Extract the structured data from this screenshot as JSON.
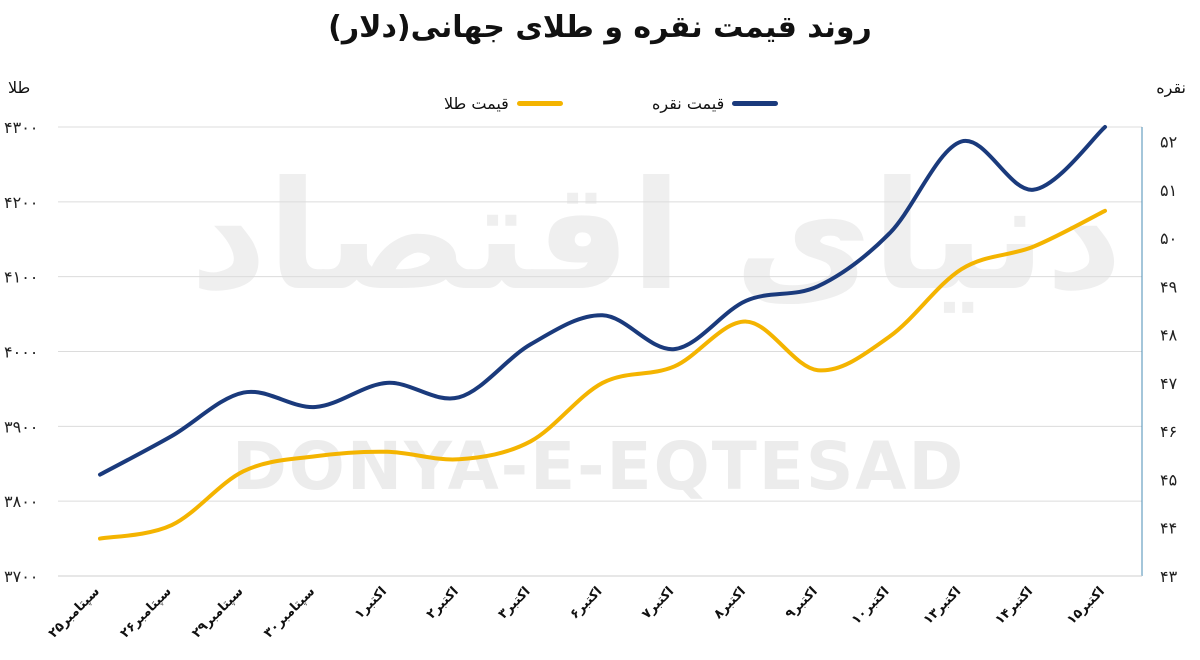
{
  "chart_data": {
    "type": "line",
    "title": "روند قیمت نقره و طلای جهانی(دلار)",
    "left_axis_label": "طلا",
    "right_axis_label": "نقره",
    "categories": [
      "۲۵سپتامبر",
      "۲۶سپتامبر",
      "۲۹سپتامبر",
      "۳۰سپتامبر",
      "۱اکتبر",
      "۲اکتبر",
      "۳اکتبر",
      "۶اکتبر",
      "۷اکتبر",
      "۸اکتبر",
      "۹اکتبر",
      "۱۰اکتبر",
      "۱۳اکتبر",
      "۱۴اکتبر",
      "۱۵اکتبر"
    ],
    "left_axis": {
      "min": 3700,
      "max": 4300,
      "step": 100,
      "tick_labels": [
        "۳۷۰۰",
        "۳۸۰۰",
        "۳۹۰۰",
        "۴۰۰۰",
        "۴۱۰۰",
        "۴۲۰۰",
        "۴۳۰۰"
      ]
    },
    "right_axis": {
      "min": 43,
      "max": 52.3,
      "tick_values": [
        43,
        44,
        45,
        46,
        47,
        48,
        49,
        50,
        51,
        52
      ],
      "tick_labels": [
        "۴۳",
        "۴۴",
        "۴۵",
        "۴۶",
        "۴۷",
        "۴۸",
        "۴۹",
        "۵۰",
        "۵۱",
        "۵۲"
      ]
    },
    "series": [
      {
        "name": "قیمت نقره",
        "axis": "right",
        "color": "#1a3a7c",
        "values": [
          45.1,
          45.9,
          46.8,
          46.5,
          47.0,
          46.7,
          47.8,
          48.4,
          47.7,
          48.7,
          49.0,
          50.1,
          52.0,
          51.0,
          52.3
        ]
      },
      {
        "name": "قیمت طلا",
        "axis": "left",
        "color": "#f4b400",
        "values": [
          3750,
          3768,
          3840,
          3860,
          3866,
          3856,
          3880,
          3958,
          3980,
          4040,
          3975,
          4020,
          4110,
          4140,
          4188
        ]
      }
    ],
    "grid": true,
    "legend_position": "top"
  },
  "watermark": {
    "latin": "DONYA-E-EQTESAD",
    "persian": "دنیای اقتصاد"
  }
}
